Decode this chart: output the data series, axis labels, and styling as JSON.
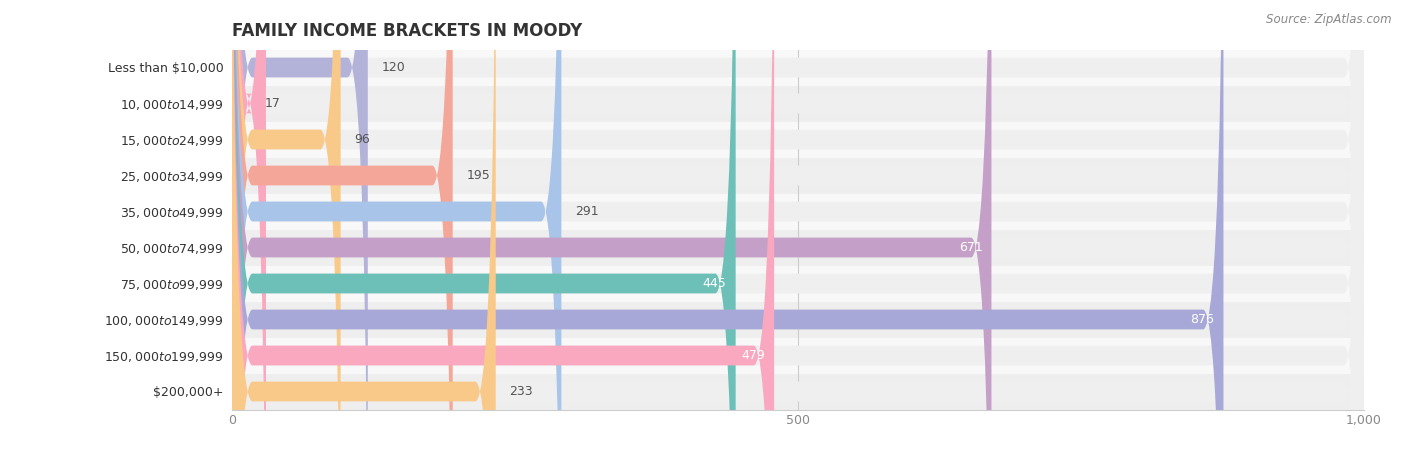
{
  "title": "FAMILY INCOME BRACKETS IN MOODY",
  "source": "Source: ZipAtlas.com",
  "categories": [
    "Less than $10,000",
    "$10,000 to $14,999",
    "$15,000 to $24,999",
    "$25,000 to $34,999",
    "$35,000 to $49,999",
    "$50,000 to $74,999",
    "$75,000 to $99,999",
    "$100,000 to $149,999",
    "$150,000 to $199,999",
    "$200,000+"
  ],
  "values": [
    120,
    17,
    96,
    195,
    291,
    671,
    445,
    876,
    479,
    233
  ],
  "bar_colors": [
    "#b3b3d9",
    "#f9a8c0",
    "#f9c98a",
    "#f4a799",
    "#a8c4e8",
    "#c4a0c8",
    "#6dc0b8",
    "#a8a8d8",
    "#f9a8c0",
    "#f9c98a"
  ],
  "bar_bg_color": "#efefef",
  "xlim": [
    0,
    1000
  ],
  "xticks": [
    0,
    500,
    1000
  ],
  "title_fontsize": 12,
  "label_fontsize": 9,
  "value_fontsize": 9,
  "background_color": "#ffffff",
  "row_bg_colors": [
    "#f8f8f8",
    "#eeeeee"
  ]
}
